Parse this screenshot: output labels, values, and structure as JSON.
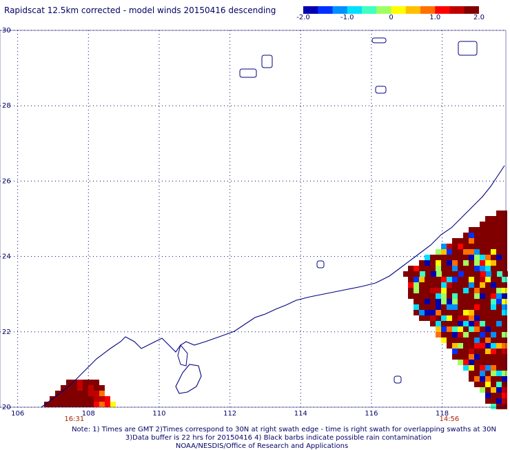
{
  "title": "Rapidscat 12.5km corrected - model winds 20150416 descending",
  "colorbar": {
    "ticks": [
      "-2.0",
      "-1.0",
      "0",
      "1.0",
      "2.0"
    ],
    "tick_values": [
      -2.0,
      -1.0,
      0,
      1.0,
      2.0
    ],
    "colors": [
      "#0000b0",
      "#0030ff",
      "#0090ff",
      "#00e0ff",
      "#40ffc0",
      "#a0ff60",
      "#ffff00",
      "#ffc000",
      "#ff7000",
      "#ff0000",
      "#c00000",
      "#800000"
    ]
  },
  "map": {
    "lon_range": [
      105.5,
      119.8
    ],
    "lat_range": [
      20,
      30
    ],
    "lon_ticks": [
      "106",
      "108",
      "110",
      "112",
      "114",
      "116",
      "118"
    ],
    "lon_tick_values": [
      106,
      108,
      110,
      112,
      114,
      116,
      118
    ],
    "lat_ticks": [
      "20",
      "22",
      "24",
      "26",
      "28",
      "30"
    ],
    "lat_tick_values": [
      20,
      22,
      24,
      26,
      28,
      30
    ],
    "grid": "dotted",
    "swath_times": [
      {
        "label": "16:31",
        "lon": 107.6
      },
      {
        "label": "14:56",
        "lon": 118.2
      }
    ],
    "coast_color": "#000080"
  },
  "notes": {
    "line1": "Note: 1) Times are GMT 2)Times correspond to 30N at right swath edge - time is right swath for overlapping swaths at 30N",
    "line2": "3)Data buffer is 22 hrs for 20150416 4) Black barbs indicate possible rain contamination",
    "line3": "NOAA/NESDIS/Office of Research and Applications"
  }
}
